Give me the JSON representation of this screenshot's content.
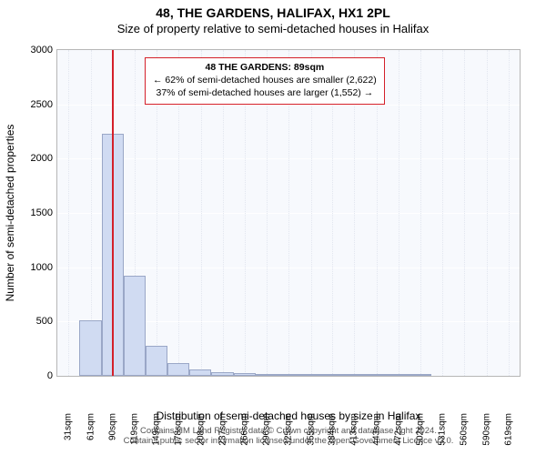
{
  "title": "48, THE GARDENS, HALIFAX, HX1 2PL",
  "subtitle": "Size of property relative to semi-detached houses in Halifax",
  "ylabel": "Number of semi-detached properties",
  "xlabel": "Distribution of semi-detached houses by size in Halifax",
  "footer_line1": "Contains HM Land Registry data © Crown copyright and database right 2024.",
  "footer_line2": "Contains public sector information licensed under the Open Government Licence v3.0.",
  "chart": {
    "type": "histogram",
    "background_color": "#f7f9fd",
    "grid_color": "#ffffff",
    "border_color": "#b6b6b6",
    "bar_fill": "#d0dbf2",
    "bar_stroke": "#9aa7c7",
    "marker_color": "#d4202a",
    "marker_value": 89,
    "ylim": [
      0,
      3000
    ],
    "ytick_step": 500,
    "xlim": [
      16,
      634
    ],
    "bin_width": 29.4,
    "xticks": [
      31,
      61,
      90,
      119,
      149,
      178,
      208,
      237,
      266,
      296,
      325,
      355,
      384,
      413,
      443,
      472,
      502,
      531,
      560,
      590,
      619
    ],
    "xtick_labels": [
      "31sqm",
      "61sqm",
      "90sqm",
      "119sqm",
      "149sqm",
      "178sqm",
      "208sqm",
      "237sqm",
      "266sqm",
      "296sqm",
      "325sqm",
      "355sqm",
      "384sqm",
      "413sqm",
      "443sqm",
      "472sqm",
      "502sqm",
      "531sqm",
      "560sqm",
      "590sqm",
      "619sqm"
    ],
    "bars": [
      {
        "x0": 16.3,
        "value": 0
      },
      {
        "x0": 45.7,
        "value": 510
      },
      {
        "x0": 75.1,
        "value": 2230
      },
      {
        "x0": 104.5,
        "value": 920
      },
      {
        "x0": 133.9,
        "value": 280
      },
      {
        "x0": 163.3,
        "value": 115
      },
      {
        "x0": 192.7,
        "value": 60
      },
      {
        "x0": 222.1,
        "value": 32
      },
      {
        "x0": 251.5,
        "value": 22
      },
      {
        "x0": 280.9,
        "value": 18
      },
      {
        "x0": 310.3,
        "value": 14
      },
      {
        "x0": 339.7,
        "value": 10
      },
      {
        "x0": 369.1,
        "value": 6
      },
      {
        "x0": 398.5,
        "value": 3
      },
      {
        "x0": 427.9,
        "value": 2
      },
      {
        "x0": 457.3,
        "value": 1
      },
      {
        "x0": 486.7,
        "value": 1
      },
      {
        "x0": 516.1,
        "value": 0
      },
      {
        "x0": 545.5,
        "value": 0
      },
      {
        "x0": 574.9,
        "value": 0
      },
      {
        "x0": 604.3,
        "value": 0
      }
    ]
  },
  "info_box": {
    "line1": "48 THE GARDENS: 89sqm",
    "line2": "← 62% of semi-detached houses are smaller (2,622)",
    "line3": "37% of semi-detached houses are larger (1,552) →",
    "border_color": "#d4202a",
    "border_width": 1,
    "font_size": 10.5
  }
}
